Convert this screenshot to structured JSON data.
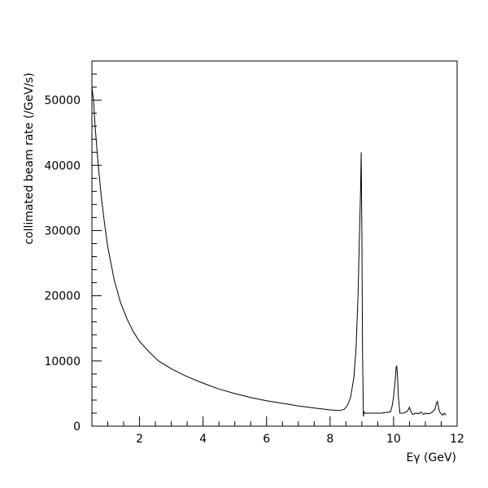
{
  "chart_data": {
    "type": "line",
    "title": "",
    "xlabel": "Eγ (GeV)",
    "ylabel": "collimated beam rate (/GeV/s)",
    "xlim": [
      0.5,
      12
    ],
    "ylim": [
      0,
      56000
    ],
    "x_ticks": [
      2,
      4,
      6,
      8,
      10,
      12
    ],
    "y_ticks": [
      0,
      10000,
      20000,
      30000,
      40000,
      50000
    ],
    "x_tick_labels": [
      "2",
      "4",
      "6",
      "8",
      "10",
      "12"
    ],
    "y_tick_labels": [
      "0",
      "10000",
      "20000",
      "30000",
      "40000",
      "50000"
    ],
    "grid": false,
    "legend": "none",
    "line_color": "#000000",
    "series": [
      {
        "x": [
          0.5,
          0.55,
          0.6,
          0.7,
          0.8,
          0.9,
          1.0,
          1.2,
          1.4,
          1.6,
          1.8,
          2.0,
          2.3,
          2.6,
          3.0,
          3.5,
          4.0,
          4.5,
          5.0,
          5.5,
          6.0,
          6.5,
          7.0,
          7.5,
          8.0,
          8.3,
          8.45,
          8.55,
          8.65,
          8.75,
          8.82,
          8.88,
          8.92,
          8.96,
          8.98,
          9.0,
          9.02,
          9.05,
          9.07,
          9.1,
          9.3,
          9.6,
          9.9,
          9.95,
          10.0,
          10.05,
          10.08,
          10.1,
          10.12,
          10.15,
          10.2,
          10.3,
          10.4,
          10.45,
          10.5,
          10.55,
          10.6,
          10.7,
          10.8,
          10.85,
          10.9,
          10.95,
          11.0,
          11.1,
          11.2,
          11.3,
          11.35,
          11.38,
          11.4,
          11.45,
          11.5,
          11.55,
          11.6,
          11.65
        ],
        "y": [
          52000,
          50000,
          46000,
          40000,
          35000,
          31000,
          27500,
          22500,
          19000,
          16500,
          14500,
          13000,
          11400,
          10000,
          8800,
          7600,
          6600,
          5700,
          5000,
          4400,
          3900,
          3500,
          3100,
          2800,
          2500,
          2400,
          2600,
          3200,
          4500,
          7500,
          12000,
          20000,
          28000,
          36000,
          42000,
          30000,
          12000,
          1500,
          2200,
          2000,
          2000,
          2000,
          2200,
          3000,
          4500,
          7000,
          9000,
          9200,
          8000,
          4500,
          2000,
          2000,
          2200,
          2400,
          2900,
          2200,
          1800,
          2000,
          1900,
          2200,
          2000,
          1800,
          2000,
          1900,
          2100,
          2600,
          3500,
          3800,
          3200,
          2200,
          1900,
          1700,
          2000,
          1700
        ]
      }
    ]
  }
}
